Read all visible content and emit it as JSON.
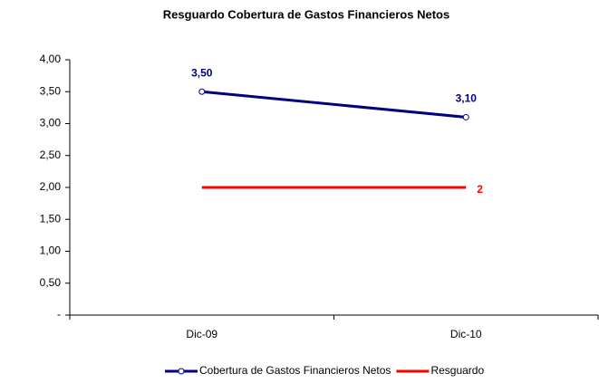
{
  "chart_data": {
    "type": "line",
    "title": "Resguardo Cobertura de Gastos Financieros Netos",
    "categories": [
      "Dic-09",
      "Dic-10"
    ],
    "series": [
      {
        "name": "Cobertura de Gastos Financieros Netos",
        "color": "#000080",
        "values": [
          3.5,
          3.1
        ],
        "value_labels": [
          "3,50",
          "3,10"
        ],
        "marker": true
      },
      {
        "name": "Resguardo",
        "color": "#ff0000",
        "values": [
          2,
          2
        ],
        "value_labels": [
          null,
          "2"
        ],
        "marker": false
      }
    ],
    "ylim": [
      0,
      4
    ],
    "yticks": [
      {
        "value": 0,
        "label": "-"
      },
      {
        "value": 0.5,
        "label": "0,50"
      },
      {
        "value": 1,
        "label": "1,00"
      },
      {
        "value": 1.5,
        "label": "1,50"
      },
      {
        "value": 2,
        "label": "2,00"
      },
      {
        "value": 2.5,
        "label": "2,50"
      },
      {
        "value": 3,
        "label": "3,00"
      },
      {
        "value": 3.5,
        "label": "3,50"
      },
      {
        "value": 4,
        "label": "4,00"
      }
    ],
    "legend": "bottom"
  }
}
